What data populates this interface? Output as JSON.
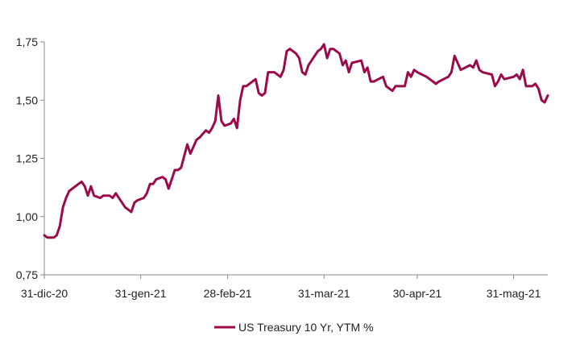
{
  "chart_data": {
    "type": "line",
    "title": "",
    "xlabel": "",
    "ylabel": "",
    "ylim": [
      0.75,
      1.75
    ],
    "y_ticks": [
      "0,75",
      "1,00",
      "1,25",
      "1,50",
      "1,75"
    ],
    "x_ticks": [
      {
        "date": "2020-12-31",
        "label": "31-dic-20"
      },
      {
        "date": "2021-01-31",
        "label": "31-gen-21"
      },
      {
        "date": "2021-02-28",
        "label": "28-feb-21"
      },
      {
        "date": "2021-03-31",
        "label": "31-mar-21"
      },
      {
        "date": "2021-04-30",
        "label": "30-apr-21"
      },
      {
        "date": "2021-05-31",
        "label": "31-mag-21"
      }
    ],
    "grid": false,
    "legend_position": "bottom-center",
    "series": [
      {
        "name": "US Treasury 10 Yr, YTM %",
        "color": "#9B0A4B",
        "points": [
          [
            "2020-12-31",
            0.92
          ],
          [
            "2021-01-01",
            0.91
          ],
          [
            "2021-01-03",
            0.91
          ],
          [
            "2021-01-04",
            0.92
          ],
          [
            "2021-01-05",
            0.96
          ],
          [
            "2021-01-06",
            1.04
          ],
          [
            "2021-01-07",
            1.08
          ],
          [
            "2021-01-08",
            1.11
          ],
          [
            "2021-01-11",
            1.14
          ],
          [
            "2021-01-12",
            1.15
          ],
          [
            "2021-01-13",
            1.13
          ],
          [
            "2021-01-14",
            1.09
          ],
          [
            "2021-01-15",
            1.13
          ],
          [
            "2021-01-16",
            1.09
          ],
          [
            "2021-01-18",
            1.08
          ],
          [
            "2021-01-19",
            1.09
          ],
          [
            "2021-01-20",
            1.09
          ],
          [
            "2021-01-21",
            1.09
          ],
          [
            "2021-01-22",
            1.08
          ],
          [
            "2021-01-23",
            1.1
          ],
          [
            "2021-01-25",
            1.06
          ],
          [
            "2021-01-26",
            1.04
          ],
          [
            "2021-01-27",
            1.03
          ],
          [
            "2021-01-28",
            1.02
          ],
          [
            "2021-01-29",
            1.06
          ],
          [
            "2021-01-30",
            1.07
          ],
          [
            "2021-02-01",
            1.08
          ],
          [
            "2021-02-02",
            1.1
          ],
          [
            "2021-02-03",
            1.14
          ],
          [
            "2021-02-04",
            1.14
          ],
          [
            "2021-02-05",
            1.16
          ],
          [
            "2021-02-07",
            1.17
          ],
          [
            "2021-02-08",
            1.16
          ],
          [
            "2021-02-09",
            1.12
          ],
          [
            "2021-02-10",
            1.16
          ],
          [
            "2021-02-11",
            1.2
          ],
          [
            "2021-02-12",
            1.2
          ],
          [
            "2021-02-13",
            1.21
          ],
          [
            "2021-02-15",
            1.31
          ],
          [
            "2021-02-16",
            1.27
          ],
          [
            "2021-02-17",
            1.3
          ],
          [
            "2021-02-18",
            1.33
          ],
          [
            "2021-02-19",
            1.34
          ],
          [
            "2021-02-21",
            1.37
          ],
          [
            "2021-02-22",
            1.36
          ],
          [
            "2021-02-23",
            1.38
          ],
          [
            "2021-02-24",
            1.41
          ],
          [
            "2021-02-25",
            1.52
          ],
          [
            "2021-02-26",
            1.41
          ],
          [
            "2021-02-27",
            1.39
          ],
          [
            "2021-03-01",
            1.4
          ],
          [
            "2021-03-02",
            1.42
          ],
          [
            "2021-03-03",
            1.38
          ],
          [
            "2021-03-04",
            1.5
          ],
          [
            "2021-03-05",
            1.56
          ],
          [
            "2021-03-06",
            1.56
          ],
          [
            "2021-03-08",
            1.58
          ],
          [
            "2021-03-09",
            1.59
          ],
          [
            "2021-03-10",
            1.53
          ],
          [
            "2021-03-11",
            1.52
          ],
          [
            "2021-03-12",
            1.53
          ],
          [
            "2021-03-13",
            1.62
          ],
          [
            "2021-03-15",
            1.62
          ],
          [
            "2021-03-16",
            1.61
          ],
          [
            "2021-03-17",
            1.6
          ],
          [
            "2021-03-18",
            1.63
          ],
          [
            "2021-03-19",
            1.71
          ],
          [
            "2021-03-20",
            1.72
          ],
          [
            "2021-03-22",
            1.7
          ],
          [
            "2021-03-23",
            1.68
          ],
          [
            "2021-03-24",
            1.62
          ],
          [
            "2021-03-25",
            1.61
          ],
          [
            "2021-03-26",
            1.65
          ],
          [
            "2021-03-28",
            1.69
          ],
          [
            "2021-03-29",
            1.71
          ],
          [
            "2021-03-30",
            1.72
          ],
          [
            "2021-03-31",
            1.74
          ],
          [
            "2021-04-01",
            1.68
          ],
          [
            "2021-04-02",
            1.72
          ],
          [
            "2021-04-03",
            1.72
          ],
          [
            "2021-04-05",
            1.7
          ],
          [
            "2021-04-06",
            1.65
          ],
          [
            "2021-04-07",
            1.67
          ],
          [
            "2021-04-08",
            1.62
          ],
          [
            "2021-04-09",
            1.66
          ],
          [
            "2021-04-12",
            1.67
          ],
          [
            "2021-04-13",
            1.62
          ],
          [
            "2021-04-14",
            1.64
          ],
          [
            "2021-04-15",
            1.58
          ],
          [
            "2021-04-16",
            1.58
          ],
          [
            "2021-04-19",
            1.6
          ],
          [
            "2021-04-20",
            1.56
          ],
          [
            "2021-04-21",
            1.55
          ],
          [
            "2021-04-22",
            1.54
          ],
          [
            "2021-04-23",
            1.56
          ],
          [
            "2021-04-26",
            1.56
          ],
          [
            "2021-04-27",
            1.62
          ],
          [
            "2021-04-28",
            1.6
          ],
          [
            "2021-04-29",
            1.63
          ],
          [
            "2021-04-30",
            1.62
          ],
          [
            "2021-05-03",
            1.6
          ],
          [
            "2021-05-04",
            1.59
          ],
          [
            "2021-05-05",
            1.58
          ],
          [
            "2021-05-06",
            1.57
          ],
          [
            "2021-05-07",
            1.58
          ],
          [
            "2021-05-10",
            1.6
          ],
          [
            "2021-05-11",
            1.62
          ],
          [
            "2021-05-12",
            1.69
          ],
          [
            "2021-05-13",
            1.66
          ],
          [
            "2021-05-14",
            1.63
          ],
          [
            "2021-05-17",
            1.65
          ],
          [
            "2021-05-18",
            1.64
          ],
          [
            "2021-05-19",
            1.67
          ],
          [
            "2021-05-20",
            1.63
          ],
          [
            "2021-05-21",
            1.62
          ],
          [
            "2021-05-24",
            1.61
          ],
          [
            "2021-05-25",
            1.56
          ],
          [
            "2021-05-26",
            1.58
          ],
          [
            "2021-05-27",
            1.61
          ],
          [
            "2021-05-28",
            1.59
          ],
          [
            "2021-05-31",
            1.6
          ],
          [
            "2021-06-01",
            1.61
          ],
          [
            "2021-06-02",
            1.59
          ],
          [
            "2021-06-03",
            1.63
          ],
          [
            "2021-06-04",
            1.56
          ],
          [
            "2021-06-06",
            1.56
          ],
          [
            "2021-06-07",
            1.57
          ],
          [
            "2021-06-08",
            1.55
          ],
          [
            "2021-06-09",
            1.5
          ],
          [
            "2021-06-10",
            1.49
          ],
          [
            "2021-06-11",
            1.52
          ]
        ]
      }
    ]
  }
}
